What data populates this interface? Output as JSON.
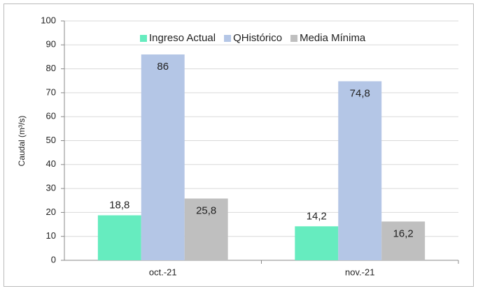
{
  "chart_data": {
    "type": "bar",
    "y_label": "Caudal (m³/s)",
    "categories": [
      "oct.-21",
      "nov.-21"
    ],
    "series": [
      {
        "name": "Ingreso Actual",
        "color": "#66ecbf",
        "values": [
          18.8,
          14.2
        ],
        "value_labels": [
          "18,8",
          "14,2"
        ]
      },
      {
        "name": "QHistórico",
        "color": "#b4c6e6",
        "values": [
          86,
          74.8
        ],
        "value_labels": [
          "86",
          "74,8"
        ]
      },
      {
        "name": "Media Mínima",
        "color": "#bfbfbf",
        "values": [
          25.8,
          16.2
        ],
        "value_labels": [
          "25,8",
          "16,2"
        ]
      }
    ],
    "ylim": [
      0,
      100
    ],
    "yticks": [
      0,
      10,
      20,
      30,
      40,
      50,
      60,
      70,
      80,
      90,
      100
    ],
    "grid": true,
    "legend": "top"
  }
}
